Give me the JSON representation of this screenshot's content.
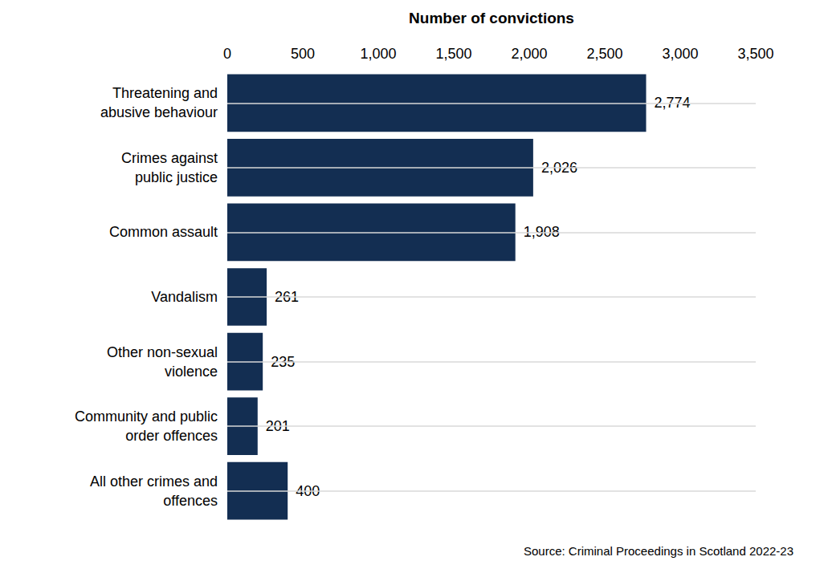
{
  "chart_data": {
    "type": "bar",
    "orientation": "horizontal",
    "x_label": "Number of convictions",
    "source": "Source: Criminal Proceedings in Scotland 2022-23",
    "categories": [
      "Threatening and\nabusive behaviour",
      "Crimes against\npublic justice",
      "Common assault",
      "Vandalism",
      "Other non-sexual\nviolence",
      "Community and public\norder offences",
      "All other crimes and\noffences"
    ],
    "values": [
      2774,
      2026,
      1908,
      261,
      235,
      201,
      400
    ],
    "value_labels": [
      "2,774",
      "2,026",
      "1,908",
      "261",
      "235",
      "201",
      "400"
    ],
    "data_labels": true,
    "color": "#132e52",
    "xlim": [
      0,
      3500
    ],
    "xticks": [
      0,
      500,
      {
        "value": 1000,
        "label": "1,000"
      },
      {
        "value": 1500,
        "label": "1,500"
      },
      {
        "value": 2000,
        "label": "2,000"
      },
      {
        "value": 2500,
        "label": "2,500"
      },
      {
        "value": 3000,
        "label": "3,000"
      },
      {
        "value": 3500,
        "label": "3,500"
      }
    ],
    "grid": true
  }
}
